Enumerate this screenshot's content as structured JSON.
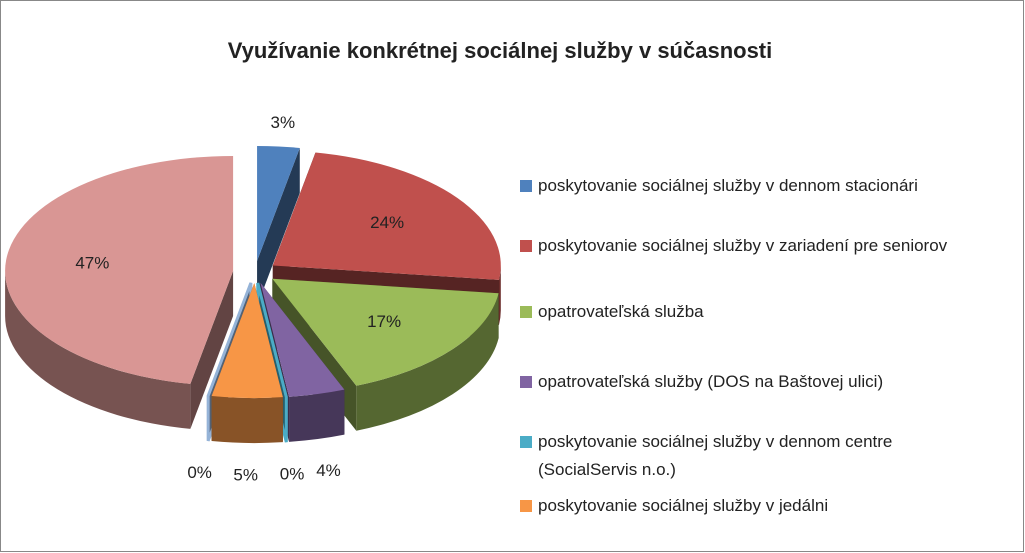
{
  "chart_data": {
    "type": "pie",
    "title": "Využívanie konkrétnej sociálnej služby v súčasnosti",
    "categories": [
      "poskytovanie sociálnej služby v dennom stacionári",
      "poskytovanie sociálnej služby v zariadení pre seniorov",
      "opatrovateľská služba",
      "opatrovateľská služby (DOS na Baštovej ulici)",
      "poskytovanie sociálnej služby v dennom centre (SocialServis n.o.)",
      "poskytovanie sociálnej služby v jedálni",
      null,
      null
    ],
    "values": [
      3,
      24,
      17,
      4,
      0,
      5,
      0,
      47
    ],
    "value_labels": [
      "3%",
      "24%",
      "17%",
      "4%",
      "0%",
      "5%",
      "0%",
      "47%"
    ],
    "colors": [
      "#4f81bd",
      "#c0504d",
      "#9bbb59",
      "#8064a2",
      "#4bacc6",
      "#f79646",
      "#95b3d7",
      "#d99694"
    ]
  }
}
